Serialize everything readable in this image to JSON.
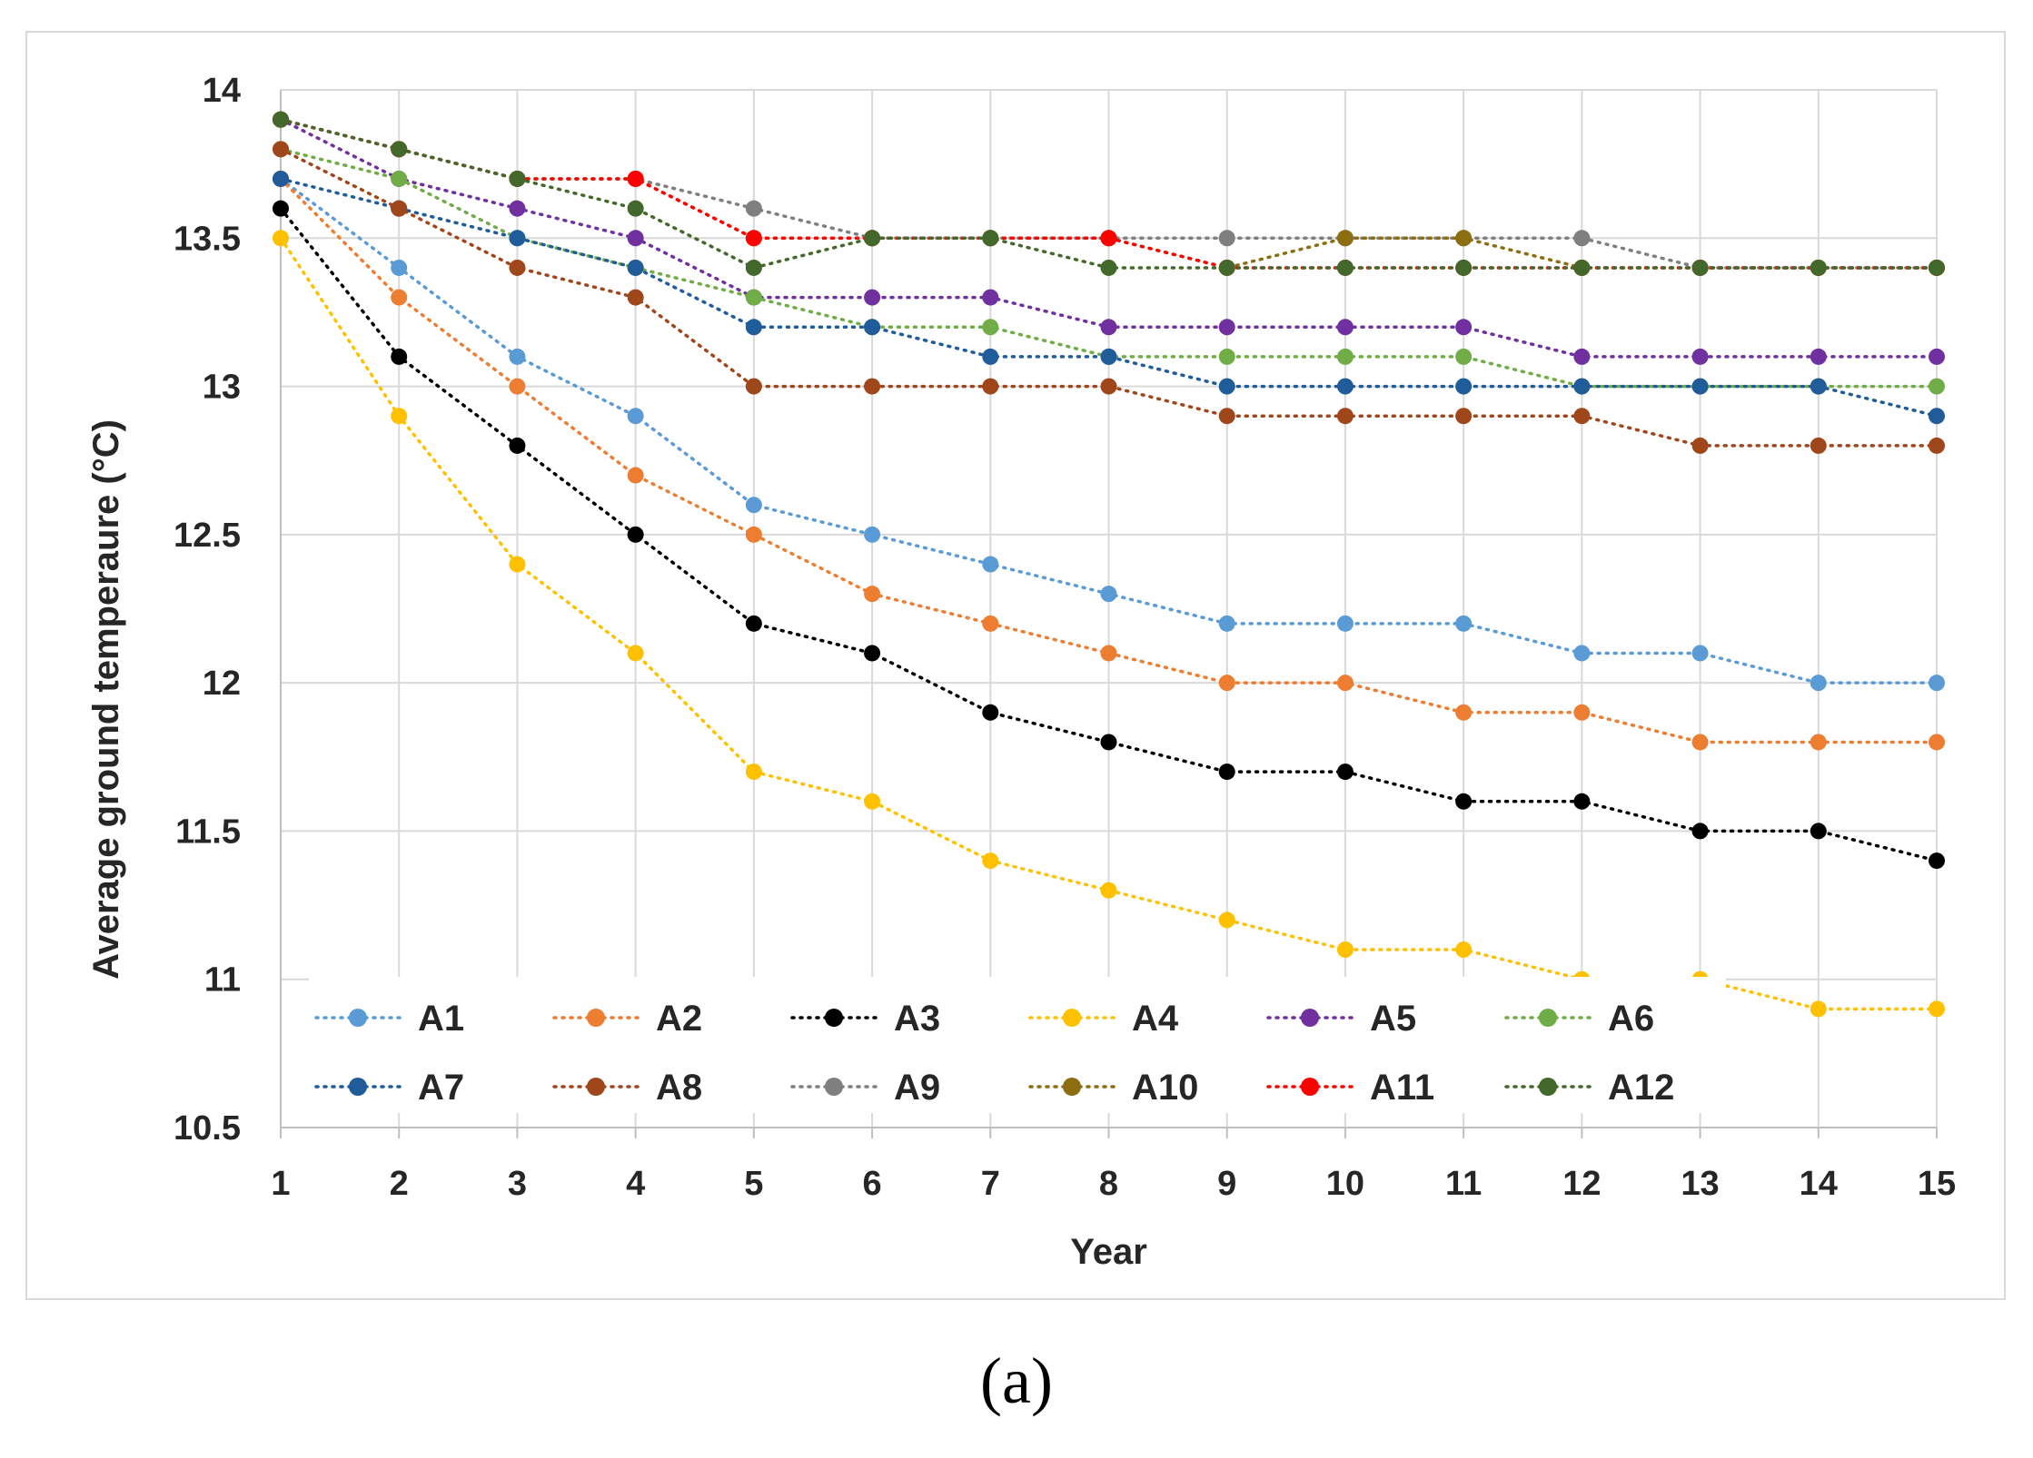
{
  "caption": "(a)",
  "chart_data": {
    "type": "line",
    "title": "",
    "xlabel": "Year",
    "ylabel": "Average ground temperaure (°C)",
    "x": [
      1,
      2,
      3,
      4,
      5,
      6,
      7,
      8,
      9,
      10,
      11,
      12,
      13,
      14,
      15
    ],
    "ylim": [
      10.5,
      14
    ],
    "yticks": [
      "10.5",
      "11",
      "11.5",
      "12",
      "12.5",
      "13",
      "13.5",
      "14"
    ],
    "grid": true,
    "legend_position": "bottom-inside",
    "series": [
      {
        "name": "A1",
        "color": "#5b9bd5",
        "values": [
          13.7,
          13.4,
          13.1,
          12.9,
          12.6,
          12.5,
          12.4,
          12.3,
          12.2,
          12.2,
          12.2,
          12.1,
          12.1,
          12.0,
          12.0
        ]
      },
      {
        "name": "A2",
        "color": "#ed7d31",
        "values": [
          13.7,
          13.3,
          13.0,
          12.7,
          12.5,
          12.3,
          12.2,
          12.1,
          12.0,
          12.0,
          11.9,
          11.9,
          11.8,
          11.8,
          11.8
        ]
      },
      {
        "name": "A3",
        "color": "#000000",
        "values": [
          13.6,
          13.1,
          12.8,
          12.5,
          12.2,
          12.1,
          11.9,
          11.8,
          11.7,
          11.7,
          11.6,
          11.6,
          11.5,
          11.5,
          11.4
        ]
      },
      {
        "name": "A4",
        "color": "#ffc000",
        "values": [
          13.5,
          12.9,
          12.4,
          12.1,
          11.7,
          11.6,
          11.4,
          11.3,
          11.2,
          11.1,
          11.1,
          11.0,
          11.0,
          10.9,
          10.9
        ]
      },
      {
        "name": "A5",
        "color": "#7030a0",
        "values": [
          13.9,
          13.7,
          13.6,
          13.5,
          13.3,
          13.3,
          13.3,
          13.2,
          13.2,
          13.2,
          13.2,
          13.1,
          13.1,
          13.1,
          13.1
        ]
      },
      {
        "name": "A6",
        "color": "#70ad47",
        "values": [
          13.8,
          13.7,
          13.5,
          13.4,
          13.3,
          13.2,
          13.2,
          13.1,
          13.1,
          13.1,
          13.1,
          13.0,
          13.0,
          13.0,
          13.0
        ]
      },
      {
        "name": "A7",
        "color": "#1f5c99",
        "values": [
          13.7,
          13.6,
          13.5,
          13.4,
          13.2,
          13.2,
          13.1,
          13.1,
          13.0,
          13.0,
          13.0,
          13.0,
          13.0,
          13.0,
          12.9
        ]
      },
      {
        "name": "A8",
        "color": "#a0461b",
        "values": [
          13.8,
          13.6,
          13.4,
          13.3,
          13.0,
          13.0,
          13.0,
          13.0,
          12.9,
          12.9,
          12.9,
          12.9,
          12.8,
          12.8,
          12.8
        ]
      },
      {
        "name": "A9",
        "color": "#7f7f7f",
        "values": [
          13.9,
          13.8,
          13.7,
          13.7,
          13.6,
          13.5,
          13.5,
          13.5,
          13.5,
          13.5,
          13.5,
          13.5,
          13.4,
          13.4,
          13.4
        ]
      },
      {
        "name": "A10",
        "color": "#8c6d0f",
        "values": [
          13.9,
          13.8,
          13.7,
          13.7,
          13.5,
          13.5,
          13.5,
          13.5,
          13.4,
          13.5,
          13.5,
          13.4,
          13.4,
          13.4,
          13.4
        ]
      },
      {
        "name": "A11",
        "color": "#ff0000",
        "values": [
          13.9,
          13.8,
          13.7,
          13.7,
          13.5,
          13.5,
          13.5,
          13.5,
          13.4,
          13.4,
          13.4,
          13.4,
          13.4,
          13.4,
          13.4
        ]
      },
      {
        "name": "A12",
        "color": "#43682b",
        "values": [
          13.9,
          13.8,
          13.7,
          13.6,
          13.4,
          13.5,
          13.5,
          13.4,
          13.4,
          13.4,
          13.4,
          13.4,
          13.4,
          13.4,
          13.4
        ]
      }
    ]
  }
}
